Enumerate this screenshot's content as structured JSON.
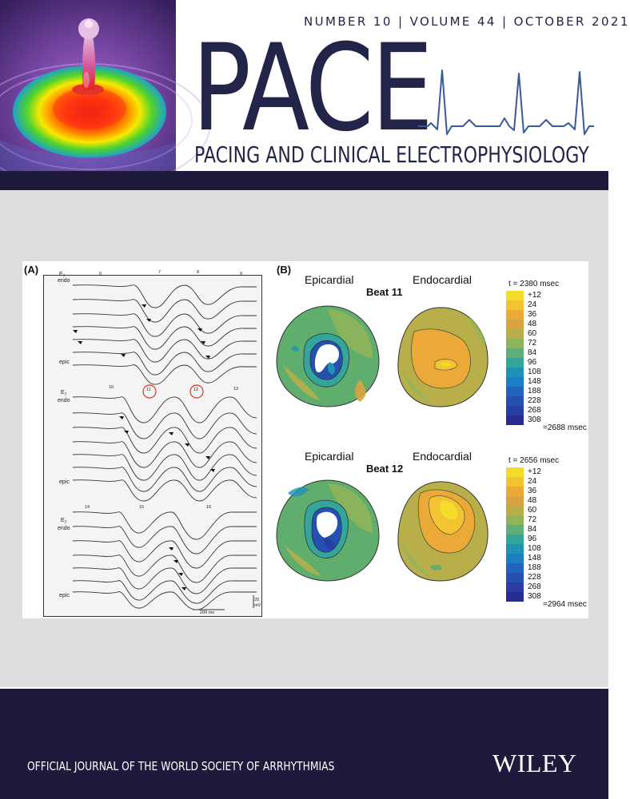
{
  "header": {
    "issue": "NUMBER 10 | VOLUME 44 | OCTOBER 2021",
    "title": "PACE",
    "subtitle": "PACING AND CLINICAL ELECTROPHYSIOLOGY"
  },
  "figure": {
    "panel_a": {
      "label": "(A)",
      "electrode": "E",
      "electrode_sub": "7",
      "endo": "endo",
      "epic": "epic",
      "beats": [
        "6",
        "7",
        "8",
        "9",
        "10",
        "11",
        "12",
        "13",
        "14",
        "15",
        "16"
      ],
      "time_scale": "200 ms",
      "volt_scale_num": "20",
      "volt_scale_unit": "mV"
    },
    "panel_b": {
      "label": "(B)",
      "epicardial": "Epicardial",
      "endocardial": "Endocardial",
      "maps": [
        {
          "beat": "Beat 11",
          "t_start": "t = 2380 msec",
          "t_end": "=2688 msec",
          "legend": [
            "+12",
            "24",
            "36",
            "48",
            "60",
            "72",
            "84",
            "96",
            "108",
            "148",
            "188",
            "228",
            "268",
            "308"
          ]
        },
        {
          "beat": "Beat 12",
          "t_start": "t = 2656 msec",
          "t_end": "=2964 msec",
          "legend": [
            "+12",
            "24",
            "36",
            "48",
            "60",
            "72",
            "84",
            "96",
            "108",
            "148",
            "188",
            "228",
            "268",
            "308"
          ]
        }
      ],
      "legend_colors": [
        "#f4dc2a",
        "#f2c431",
        "#ebaa38",
        "#d9a440",
        "#b8af4a",
        "#8fb55a",
        "#5faf78",
        "#34a59a",
        "#1f93b6",
        "#1d7ec4",
        "#2064bd",
        "#2550b0",
        "#283ea1",
        "#252c8e"
      ]
    }
  },
  "footer": {
    "tagline": "OFFICIAL JOURNAL OF THE WORLD SOCIETY OF ARRHYTHMIAS",
    "publisher": "WILEY"
  },
  "colors": {
    "navy": "#1d1a3c",
    "title": "#23244a",
    "ecg_line": "#3b5a9a",
    "figure_bg": "#dedede"
  }
}
